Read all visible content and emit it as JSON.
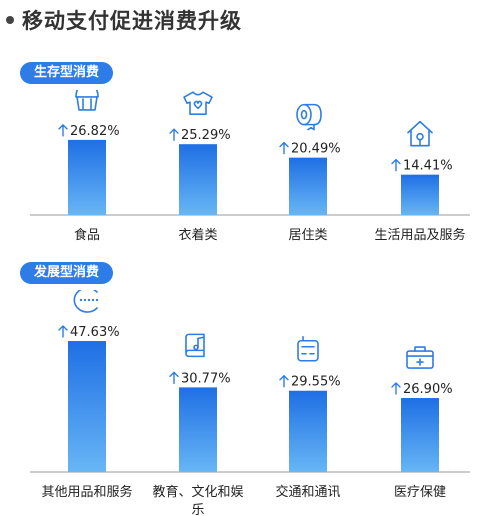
{
  "title": "移动支付促进消费升级",
  "chart_data": [
    {
      "type": "bar",
      "title": "生存型消费",
      "categories": [
        "食品",
        "衣着类",
        "居住类",
        "生活用品及服务"
      ],
      "values": [
        26.82,
        25.29,
        20.49,
        14.41
      ],
      "value_labels": [
        "26.82%",
        "25.29%",
        "20.49%",
        "14.41%"
      ],
      "icons": [
        "cake-icon",
        "tshirt-icon",
        "toilet-paper-icon",
        "house-icon"
      ],
      "ylim": [
        0,
        50
      ],
      "grid": false,
      "accent": "#2e7de6"
    },
    {
      "type": "bar",
      "title": "发展型消费",
      "categories": [
        "其他用品和服务",
        "教育、文化和娱乐",
        "交通和通讯",
        "医疗保健"
      ],
      "values": [
        47.63,
        30.77,
        29.55,
        26.9
      ],
      "value_labels": [
        "47.63%",
        "30.77%",
        "29.55%",
        "26.90%"
      ],
      "icons": [
        "dots-ellipsis-icon",
        "book-music-icon",
        "phone-device-icon",
        "medical-kit-icon"
      ],
      "ylim": [
        0,
        50
      ],
      "grid": false,
      "accent": "#2e7de6"
    }
  ]
}
